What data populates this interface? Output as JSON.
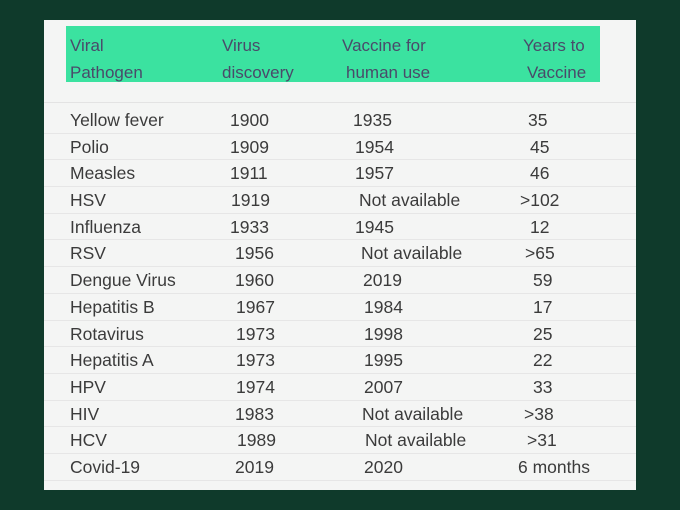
{
  "header": {
    "pathogen": [
      "Viral",
      "Pathogen"
    ],
    "discovery": [
      "Virus",
      "discovery"
    ],
    "vaccine": [
      "Vaccine for",
      "human use"
    ],
    "years": [
      "Years to",
      "Vaccine"
    ]
  },
  "rows": [
    {
      "pathogen": "Yellow fever",
      "discovery": "1900",
      "vaccine": "1935",
      "years": "35"
    },
    {
      "pathogen": "Polio",
      "discovery": "1909",
      "vaccine": "1954",
      "years": "45"
    },
    {
      "pathogen": "Measles",
      "discovery": "1911",
      "vaccine": "1957",
      "years": "46"
    },
    {
      "pathogen": "HSV",
      "discovery": "1919",
      "vaccine": "Not available",
      "years": ">102"
    },
    {
      "pathogen": "Influenza",
      "discovery": "1933",
      "vaccine": "1945",
      "years": "12"
    },
    {
      "pathogen": "RSV",
      "discovery": "1956",
      "vaccine": "Not available",
      "years": ">65"
    },
    {
      "pathogen": "Dengue Virus",
      "discovery": "1960",
      "vaccine": "2019",
      "years": "59"
    },
    {
      "pathogen": "Hepatitis B",
      "discovery": "1967",
      "vaccine": "1984",
      "years": "17"
    },
    {
      "pathogen": "Rotavirus",
      "discovery": "1973",
      "vaccine": "1998",
      "years": "25"
    },
    {
      "pathogen": "Hepatitis A",
      "discovery": "1973",
      "vaccine": "1995",
      "years": "22"
    },
    {
      "pathogen": "HPV",
      "discovery": "1974",
      "vaccine": "2007",
      "years": "33"
    },
    {
      "pathogen": "HIV",
      "discovery": "1983",
      "vaccine": "Not available",
      "years": ">38"
    },
    {
      "pathogen": "HCV",
      "discovery": "1989",
      "vaccine": "Not available",
      "years": ">31"
    },
    {
      "pathogen": "Covid-19",
      "discovery": "2019",
      "vaccine": "2020",
      "years": "6 months"
    }
  ]
}
